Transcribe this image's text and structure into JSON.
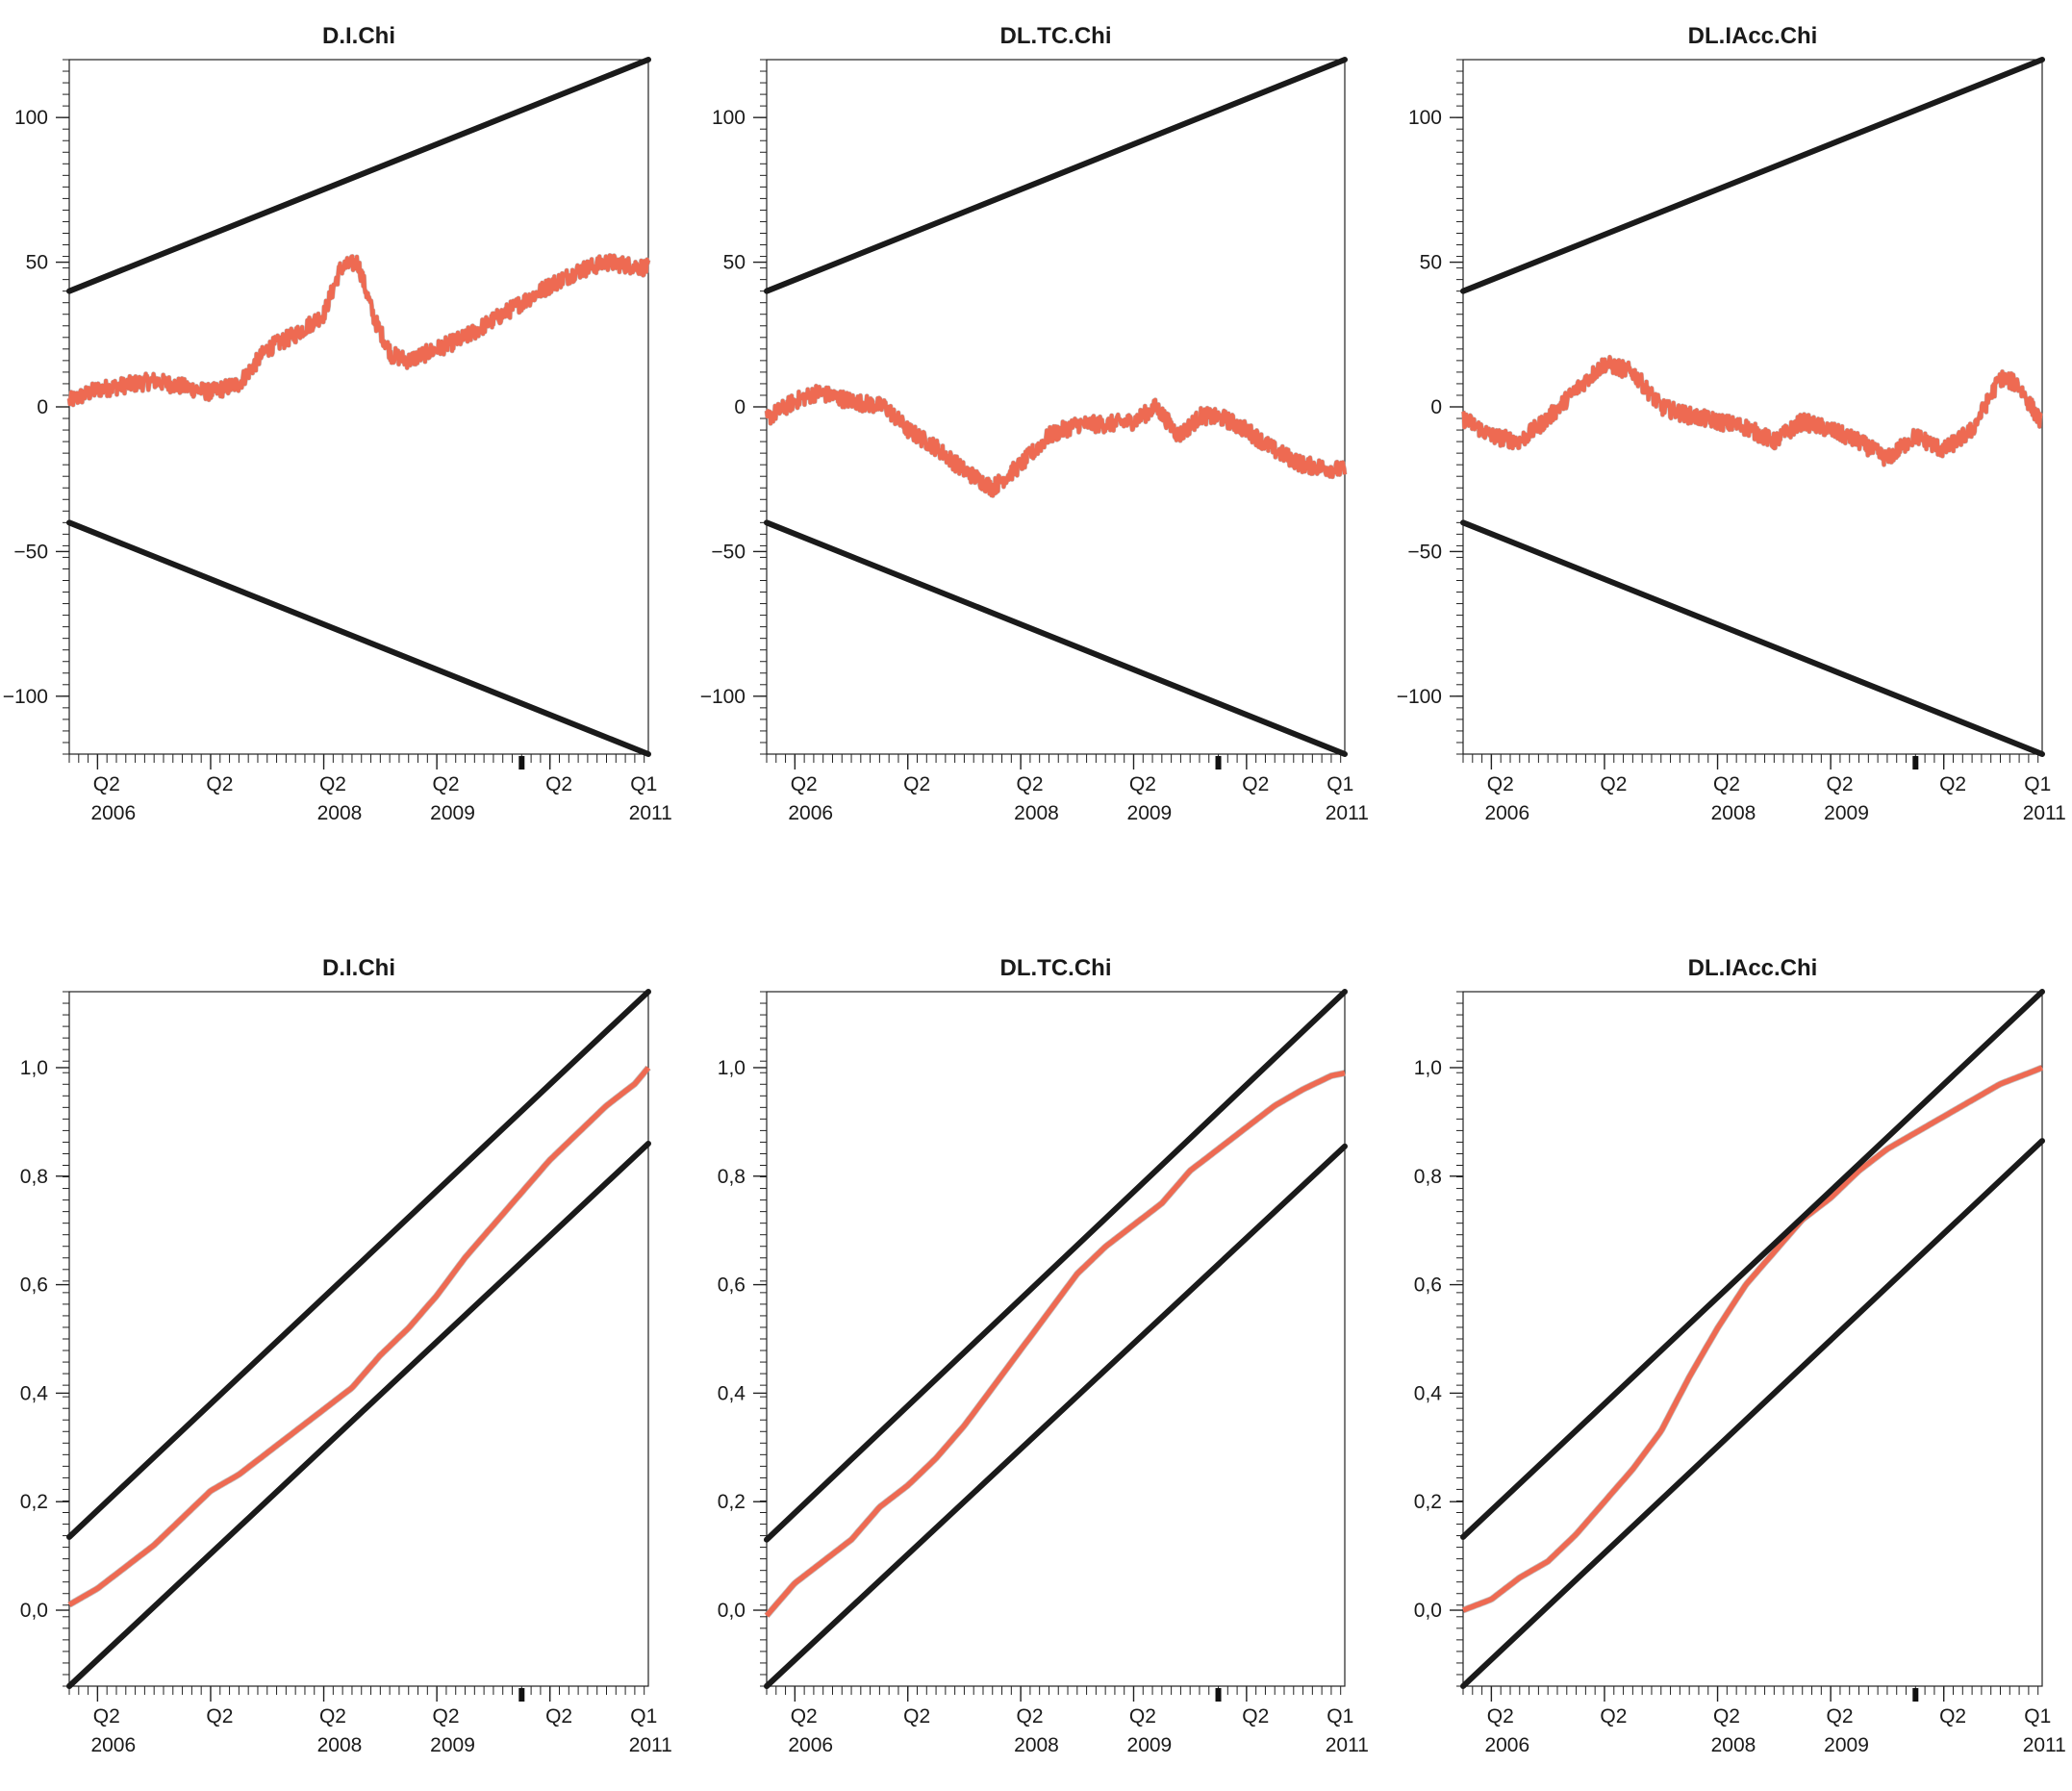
{
  "colors": {
    "series": "#ee6a52",
    "series_outline": "#9a9a9a",
    "bounds": "#1a1a1a",
    "axis": "#222222"
  },
  "x_tick_labels": [
    {
      "x": 2006.08,
      "q": "Q2",
      "y": "2006"
    },
    {
      "x": 2007.08,
      "q": "Q2",
      "y": ""
    },
    {
      "x": 2008.08,
      "q": "Q2",
      "y": "2008"
    },
    {
      "x": 2009.08,
      "q": "Q2",
      "y": "2009"
    },
    {
      "x": 2010.08,
      "q": "Q2",
      "y": ""
    },
    {
      "x": 2010.83,
      "q": "Q1",
      "y": "2011"
    }
  ],
  "chart_data": [
    {
      "type": "line",
      "title": "D.I.Chi",
      "xlim": [
        2005.75,
        2010.87
      ],
      "ylim": [
        -120,
        120
      ],
      "yticks": [
        -100,
        -50,
        0,
        50,
        100
      ],
      "ytick_labels": [
        "−100",
        "−50",
        "0",
        "50",
        "100"
      ],
      "grid": false,
      "series": [
        {
          "role": "statistic",
          "x": [
            2005.75,
            2006.0,
            2006.5,
            2007.0,
            2007.25,
            2007.5,
            2007.75,
            2008.0,
            2008.15,
            2008.3,
            2008.45,
            2008.6,
            2008.75,
            2009.0,
            2009.25,
            2009.5,
            2009.75,
            2010.0,
            2010.25,
            2010.5,
            2010.87
          ],
          "y": [
            2,
            6,
            9,
            5,
            8,
            20,
            25,
            32,
            48,
            50,
            30,
            18,
            16,
            20,
            24,
            30,
            36,
            42,
            47,
            50,
            48
          ]
        },
        {
          "role": "upper-bound",
          "x": [
            2005.75,
            2010.87
          ],
          "y": [
            40,
            120
          ]
        },
        {
          "role": "lower-bound",
          "x": [
            2005.75,
            2010.87
          ],
          "y": [
            -40,
            -120
          ]
        }
      ]
    },
    {
      "type": "line",
      "title": "DL.TC.Chi",
      "xlim": [
        2005.75,
        2010.87
      ],
      "ylim": [
        -120,
        120
      ],
      "yticks": [
        -100,
        -50,
        0,
        50,
        100
      ],
      "ytick_labels": [
        "−100",
        "−50",
        "0",
        "50",
        "100"
      ],
      "grid": false,
      "series": [
        {
          "role": "statistic",
          "x": [
            2005.75,
            2006.0,
            2006.2,
            2006.5,
            2006.8,
            2007.0,
            2007.25,
            2007.5,
            2007.75,
            2008.0,
            2008.25,
            2008.5,
            2008.75,
            2009.0,
            2009.2,
            2009.4,
            2009.6,
            2009.8,
            2010.0,
            2010.25,
            2010.5,
            2010.87
          ],
          "y": [
            -4,
            2,
            5,
            2,
            0,
            -8,
            -14,
            -22,
            -28,
            -20,
            -10,
            -6,
            -6,
            -5,
            0,
            -10,
            -3,
            -4,
            -8,
            -15,
            -20,
            -22
          ]
        },
        {
          "role": "upper-bound",
          "x": [
            2005.75,
            2010.87
          ],
          "y": [
            40,
            120
          ]
        },
        {
          "role": "lower-bound",
          "x": [
            2005.75,
            2010.87
          ],
          "y": [
            -40,
            -120
          ]
        }
      ]
    },
    {
      "type": "line",
      "title": "DL.IAcc.Chi",
      "xlim": [
        2005.75,
        2010.87
      ],
      "ylim": [
        -120,
        120
      ],
      "yticks": [
        -100,
        -50,
        0,
        50,
        100
      ],
      "ytick_labels": [
        "−100",
        "−50",
        "0",
        "50",
        "100"
      ],
      "grid": false,
      "series": [
        {
          "role": "statistic",
          "x": [
            2005.75,
            2006.0,
            2006.25,
            2006.5,
            2006.75,
            2007.0,
            2007.25,
            2007.5,
            2007.75,
            2008.0,
            2008.25,
            2008.5,
            2008.75,
            2009.0,
            2009.25,
            2009.5,
            2009.75,
            2010.0,
            2010.25,
            2010.5,
            2010.65,
            2010.87
          ],
          "y": [
            -4,
            -10,
            -12,
            -4,
            6,
            15,
            12,
            0,
            -3,
            -5,
            -7,
            -12,
            -5,
            -8,
            -12,
            -18,
            -10,
            -15,
            -8,
            10,
            8,
            -6
          ]
        },
        {
          "role": "upper-bound",
          "x": [
            2005.75,
            2010.87
          ],
          "y": [
            40,
            120
          ]
        },
        {
          "role": "lower-bound",
          "x": [
            2005.75,
            2010.87
          ],
          "y": [
            -40,
            -120
          ]
        }
      ]
    },
    {
      "type": "line",
      "title": "D.I.Chi",
      "xlim": [
        2005.75,
        2010.87
      ],
      "ylim": [
        -0.14,
        1.14
      ],
      "yticks": [
        0.0,
        0.2,
        0.4,
        0.6,
        0.8,
        1.0
      ],
      "ytick_labels": [
        "0,0",
        "0,2",
        "0,4",
        "0,6",
        "0,8",
        "1,0"
      ],
      "grid": false,
      "series": [
        {
          "role": "statistic",
          "x": [
            2005.75,
            2006.0,
            2006.25,
            2006.5,
            2006.75,
            2007.0,
            2007.25,
            2007.5,
            2007.75,
            2008.0,
            2008.25,
            2008.5,
            2008.75,
            2009.0,
            2009.25,
            2009.5,
            2009.75,
            2010.0,
            2010.25,
            2010.5,
            2010.75,
            2010.87
          ],
          "y": [
            0.01,
            0.04,
            0.08,
            0.12,
            0.17,
            0.22,
            0.25,
            0.29,
            0.33,
            0.37,
            0.41,
            0.47,
            0.52,
            0.58,
            0.65,
            0.71,
            0.77,
            0.83,
            0.88,
            0.93,
            0.97,
            1.0
          ]
        },
        {
          "role": "upper-bound",
          "x": [
            2005.75,
            2010.87
          ],
          "y": [
            0.135,
            1.14
          ]
        },
        {
          "role": "lower-bound",
          "x": [
            2005.75,
            2010.87
          ],
          "y": [
            -0.14,
            0.86
          ]
        }
      ]
    },
    {
      "type": "line",
      "title": "DL.TC.Chi",
      "xlim": [
        2005.75,
        2010.87
      ],
      "ylim": [
        -0.14,
        1.14
      ],
      "yticks": [
        0.0,
        0.2,
        0.4,
        0.6,
        0.8,
        1.0
      ],
      "ytick_labels": [
        "0,0",
        "0,2",
        "0,4",
        "0,6",
        "0,8",
        "1,0"
      ],
      "grid": false,
      "series": [
        {
          "role": "statistic",
          "x": [
            2005.75,
            2006.0,
            2006.25,
            2006.5,
            2006.75,
            2007.0,
            2007.25,
            2007.5,
            2007.75,
            2008.0,
            2008.25,
            2008.5,
            2008.75,
            2009.0,
            2009.25,
            2009.5,
            2009.75,
            2010.0,
            2010.25,
            2010.5,
            2010.75,
            2010.87
          ],
          "y": [
            -0.01,
            0.05,
            0.09,
            0.13,
            0.19,
            0.23,
            0.28,
            0.34,
            0.41,
            0.48,
            0.55,
            0.62,
            0.67,
            0.71,
            0.75,
            0.81,
            0.85,
            0.89,
            0.93,
            0.96,
            0.985,
            0.99
          ]
        },
        {
          "role": "upper-bound",
          "x": [
            2005.75,
            2010.87
          ],
          "y": [
            0.13,
            1.14
          ]
        },
        {
          "role": "lower-bound",
          "x": [
            2005.75,
            2010.87
          ],
          "y": [
            -0.14,
            0.855
          ]
        }
      ]
    },
    {
      "type": "line",
      "title": "DL.IAcc.Chi",
      "xlim": [
        2005.75,
        2010.87
      ],
      "ylim": [
        -0.14,
        1.14
      ],
      "yticks": [
        0.0,
        0.2,
        0.4,
        0.6,
        0.8,
        1.0
      ],
      "ytick_labels": [
        "0,0",
        "0,2",
        "0,4",
        "0,6",
        "0,8",
        "1,0"
      ],
      "grid": false,
      "series": [
        {
          "role": "statistic",
          "x": [
            2005.75,
            2006.0,
            2006.25,
            2006.5,
            2006.75,
            2007.0,
            2007.25,
            2007.5,
            2007.75,
            2008.0,
            2008.25,
            2008.5,
            2008.75,
            2009.0,
            2009.25,
            2009.5,
            2009.75,
            2010.0,
            2010.25,
            2010.5,
            2010.75,
            2010.87
          ],
          "y": [
            0.0,
            0.02,
            0.06,
            0.09,
            0.14,
            0.2,
            0.26,
            0.33,
            0.43,
            0.52,
            0.6,
            0.66,
            0.72,
            0.76,
            0.81,
            0.85,
            0.88,
            0.91,
            0.94,
            0.97,
            0.99,
            1.0
          ]
        },
        {
          "role": "upper-bound",
          "x": [
            2005.75,
            2010.87
          ],
          "y": [
            0.135,
            1.14
          ]
        },
        {
          "role": "lower-bound",
          "x": [
            2005.75,
            2010.87
          ],
          "y": [
            -0.14,
            0.865
          ]
        }
      ]
    }
  ]
}
